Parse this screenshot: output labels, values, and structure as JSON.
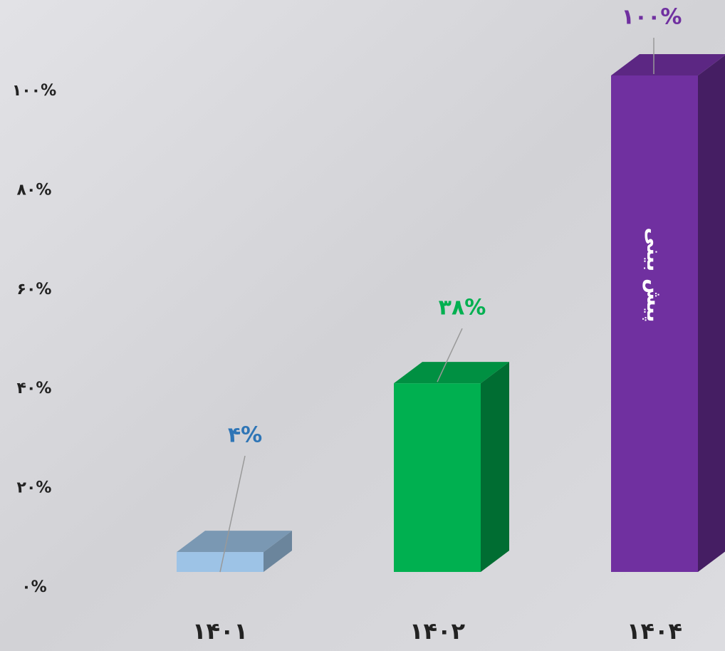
{
  "chart_data": {
    "type": "bar3d",
    "categories": [
      "۱۴۰۱",
      "۱۴۰۲",
      "۱۴۰۴"
    ],
    "values": [
      4,
      38,
      100
    ],
    "value_labels": [
      "۴%",
      "۳۸%",
      "۱۰۰%"
    ],
    "colors": [
      "#9dc3e6",
      "#00b050",
      "#7030a0"
    ],
    "label_colors": [
      "#2e75b6",
      "#00b050",
      "#7030a0"
    ],
    "annotation": "پیش بینی",
    "ylim": [
      0,
      100
    ],
    "yticks": [
      {
        "value": 0,
        "label": "۰%"
      },
      {
        "value": 20,
        "label": "۲۰%"
      },
      {
        "value": 40,
        "label": "۴۰%"
      },
      {
        "value": 60,
        "label": "۶۰%"
      },
      {
        "value": 80,
        "label": "۸۰%"
      },
      {
        "value": 100,
        "label": "۱۰۰%"
      }
    ],
    "grid": false
  }
}
